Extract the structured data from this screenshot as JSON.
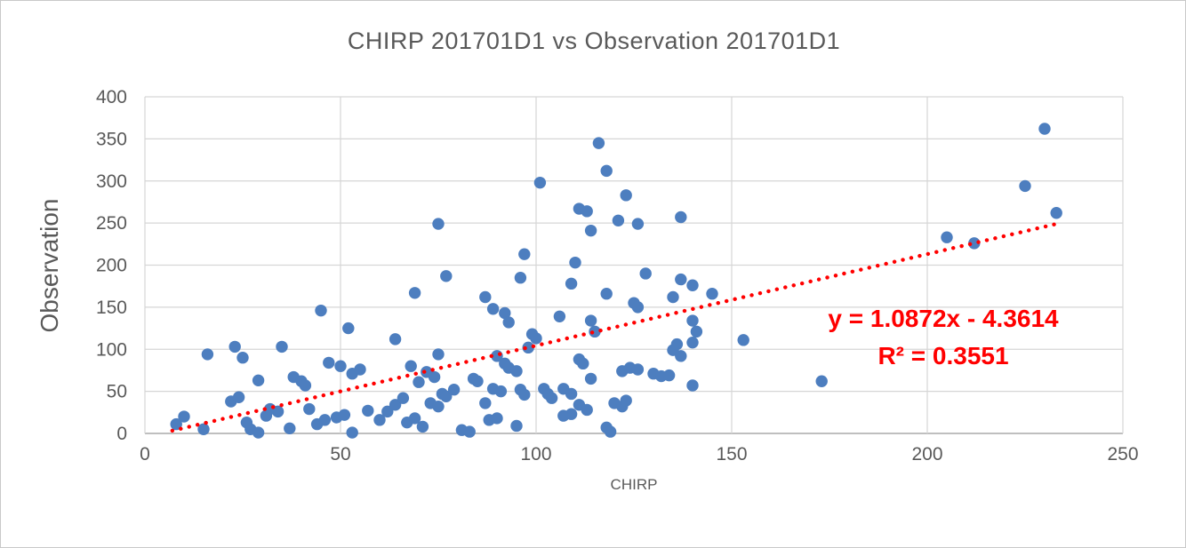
{
  "chart": {
    "title": "CHIRP 201701D1 vs Observation 201701D1"
  },
  "colors": {
    "title_text": "#595959",
    "axis_text": "#595959",
    "gridline": "#d6d6d6",
    "axis_line": "#bfbfbf",
    "point": "#4d7ebf",
    "trendline": "#ff0000",
    "annotation_text": "#ff0000",
    "background": "#ffffff"
  },
  "chart_data": {
    "type": "scatter",
    "title": "CHIRP 201701D1 vs Observation 201701D1",
    "xlabel": "CHIRP",
    "ylabel": "Observation",
    "xlim": [
      0,
      250
    ],
    "ylim": [
      0,
      400
    ],
    "x_ticks": [
      0,
      50,
      100,
      150,
      200,
      250
    ],
    "y_ticks": [
      0,
      50,
      100,
      150,
      200,
      250,
      300,
      350,
      400
    ],
    "grid": true,
    "legend": "none",
    "point_radius": 6.7,
    "points": [
      [
        8,
        11
      ],
      [
        10,
        20
      ],
      [
        15,
        5
      ],
      [
        16,
        94
      ],
      [
        22,
        38
      ],
      [
        23,
        103
      ],
      [
        24,
        43
      ],
      [
        25,
        90
      ],
      [
        26,
        13
      ],
      [
        27,
        5
      ],
      [
        29,
        1
      ],
      [
        29,
        63
      ],
      [
        31,
        21
      ],
      [
        32,
        29
      ],
      [
        34,
        26
      ],
      [
        35,
        103
      ],
      [
        37,
        6
      ],
      [
        38,
        67
      ],
      [
        40,
        62
      ],
      [
        41,
        57
      ],
      [
        42,
        29
      ],
      [
        44,
        11
      ],
      [
        45,
        146
      ],
      [
        46,
        16
      ],
      [
        47,
        84
      ],
      [
        49,
        19
      ],
      [
        50,
        80
      ],
      [
        51,
        22
      ],
      [
        52,
        125
      ],
      [
        53,
        71
      ],
      [
        53,
        1
      ],
      [
        55,
        76
      ],
      [
        57,
        27
      ],
      [
        60,
        16
      ],
      [
        62,
        26
      ],
      [
        64,
        34
      ],
      [
        64,
        112
      ],
      [
        66,
        42
      ],
      [
        67,
        13
      ],
      [
        68,
        80
      ],
      [
        69,
        18
      ],
      [
        69,
        167
      ],
      [
        70,
        61
      ],
      [
        71,
        8
      ],
      [
        72,
        73
      ],
      [
        73,
        36
      ],
      [
        74,
        67
      ],
      [
        75,
        249
      ],
      [
        75,
        94
      ],
      [
        75,
        32
      ],
      [
        76,
        47
      ],
      [
        77,
        44
      ],
      [
        77,
        187
      ],
      [
        79,
        52
      ],
      [
        81,
        4
      ],
      [
        83,
        2
      ],
      [
        84,
        65
      ],
      [
        85,
        62
      ],
      [
        87,
        162
      ],
      [
        87,
        36
      ],
      [
        88,
        16
      ],
      [
        89,
        53
      ],
      [
        89,
        148
      ],
      [
        90,
        18
      ],
      [
        90,
        92
      ],
      [
        91,
        50
      ],
      [
        92,
        83
      ],
      [
        92,
        143
      ],
      [
        93,
        132
      ],
      [
        93,
        78
      ],
      [
        95,
        74
      ],
      [
        95,
        9
      ],
      [
        96,
        185
      ],
      [
        96,
        52
      ],
      [
        97,
        46
      ],
      [
        97,
        213
      ],
      [
        98,
        102
      ],
      [
        99,
        118
      ],
      [
        100,
        113
      ],
      [
        101,
        298
      ],
      [
        102,
        53
      ],
      [
        103,
        47
      ],
      [
        104,
        42
      ],
      [
        106,
        139
      ],
      [
        107,
        53
      ],
      [
        107,
        21
      ],
      [
        109,
        47
      ],
      [
        109,
        23
      ],
      [
        109,
        178
      ],
      [
        110,
        203
      ],
      [
        111,
        88
      ],
      [
        111,
        34
      ],
      [
        111,
        267
      ],
      [
        112,
        83
      ],
      [
        113,
        28
      ],
      [
        113,
        264
      ],
      [
        114,
        241
      ],
      [
        114,
        134
      ],
      [
        114,
        65
      ],
      [
        115,
        121
      ],
      [
        116,
        345
      ],
      [
        118,
        312
      ],
      [
        118,
        166
      ],
      [
        118,
        7
      ],
      [
        119,
        2
      ],
      [
        120,
        36
      ],
      [
        121,
        253
      ],
      [
        122,
        32
      ],
      [
        122,
        74
      ],
      [
        123,
        39
      ],
      [
        123,
        283
      ],
      [
        124,
        78
      ],
      [
        125,
        155
      ],
      [
        126,
        249
      ],
      [
        126,
        76
      ],
      [
        126,
        150
      ],
      [
        128,
        190
      ],
      [
        130,
        71
      ],
      [
        132,
        68
      ],
      [
        134,
        69
      ],
      [
        135,
        99
      ],
      [
        135,
        162
      ],
      [
        136,
        106
      ],
      [
        137,
        92
      ],
      [
        137,
        257
      ],
      [
        137,
        183
      ],
      [
        140,
        176
      ],
      [
        140,
        134
      ],
      [
        140,
        108
      ],
      [
        140,
        57
      ],
      [
        141,
        121
      ],
      [
        145,
        166
      ],
      [
        153,
        111
      ],
      [
        173,
        62
      ],
      [
        205,
        233
      ],
      [
        212,
        226
      ],
      [
        225,
        294
      ],
      [
        230,
        362
      ],
      [
        233,
        262
      ]
    ],
    "trendline": {
      "type": "linear",
      "slope": 1.0872,
      "intercept": -4.3614,
      "x_start": 7,
      "x_end": 233,
      "style": "dotted",
      "equation_label": "y = 1.0872x - 4.3614",
      "r2_label": "R² = 0.3551",
      "r2_value": 0.3551
    }
  }
}
